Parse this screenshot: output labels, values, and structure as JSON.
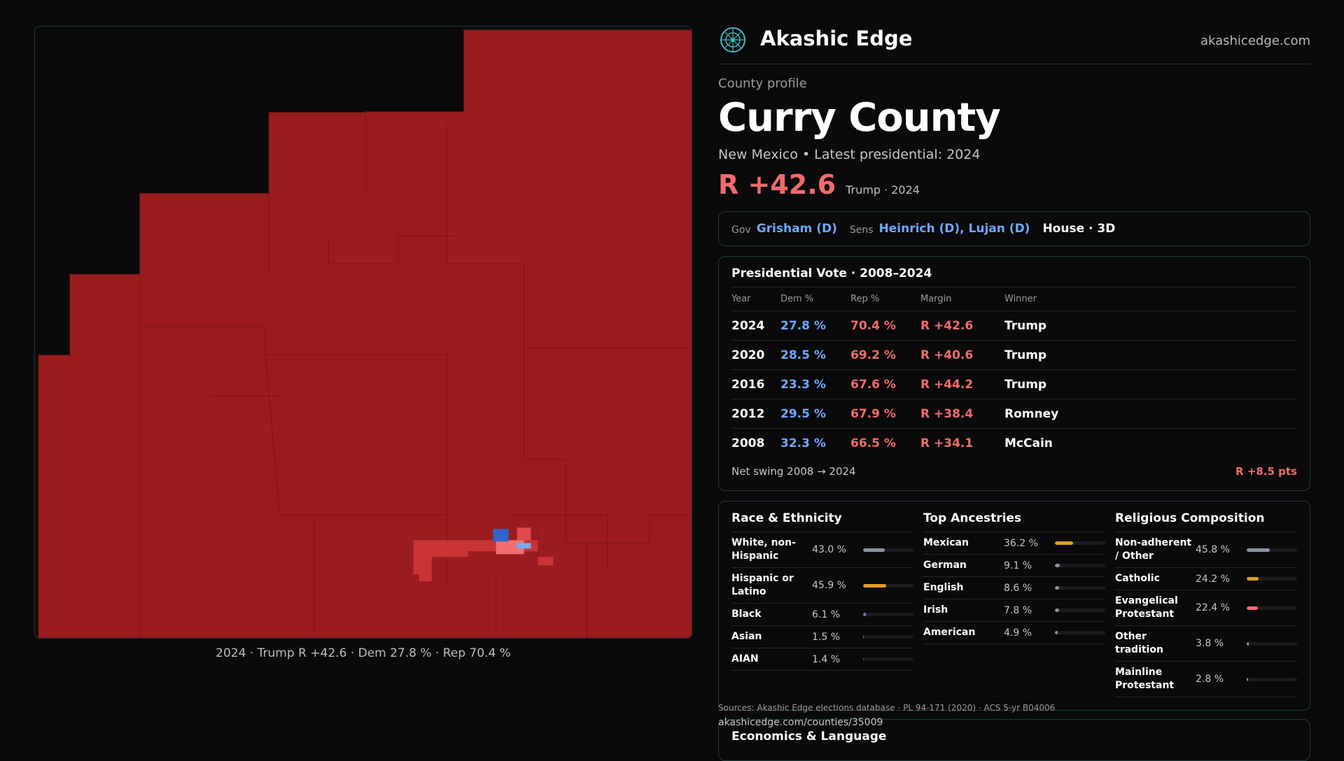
{
  "brand": {
    "name": "Akashic Edge",
    "domain": "akashicedge.com",
    "logo_icon": "compass-globe-icon"
  },
  "profile": {
    "eyebrow": "County profile",
    "county": "Curry County",
    "subline": "New Mexico • Latest presidential: 2024",
    "margin": "R +42.6",
    "margin_note": "Trump · 2024"
  },
  "officials": {
    "gov_label": "Gov",
    "gov": "Grisham (D)",
    "sens_label": "Sens",
    "sens": "Heinrich (D), Lujan (D)",
    "house": "House · 3D"
  },
  "presidential": {
    "title": "Presidential Vote · 2008–2024",
    "headers": [
      "Year",
      "Dem %",
      "Rep %",
      "Margin",
      "Winner"
    ],
    "rows": [
      [
        "2024",
        "27.8 %",
        "70.4 %",
        "R +42.6",
        "Trump"
      ],
      [
        "2020",
        "28.5 %",
        "69.2 %",
        "R +40.6",
        "Trump"
      ],
      [
        "2016",
        "23.3 %",
        "67.6 %",
        "R +44.2",
        "Trump"
      ],
      [
        "2012",
        "29.5 %",
        "67.9 %",
        "R +38.4",
        "Romney"
      ],
      [
        "2008",
        "32.3 %",
        "66.5 %",
        "R +34.1",
        "McCain"
      ]
    ],
    "swing_label": "Net swing 2008 → 2024",
    "swing_value": "R +8.5 pts"
  },
  "demographics": {
    "race": {
      "title": "Race & Ethnicity",
      "items": [
        {
          "label": "White, non-Hispanic",
          "value": "43.0 %",
          "pct": 43.0,
          "color": "#8c93a3"
        },
        {
          "label": "Hispanic or Latino",
          "value": "45.9 %",
          "pct": 45.9,
          "color": "#e0a020"
        },
        {
          "label": "Black",
          "value": "6.1 %",
          "pct": 6.1,
          "color": "#7b6cf0"
        },
        {
          "label": "Asian",
          "value": "1.5 %",
          "pct": 1.5,
          "color": "#8c93a3"
        },
        {
          "label": "AIAN",
          "value": "1.4 %",
          "pct": 1.4,
          "color": "#8a4a2a"
        }
      ]
    },
    "ancestry": {
      "title": "Top Ancestries",
      "items": [
        {
          "label": "Mexican",
          "value": "36.2 %",
          "pct": 36.2,
          "color": "#e0a020"
        },
        {
          "label": "German",
          "value": "9.1 %",
          "pct": 9.1,
          "color": "#8c93a3"
        },
        {
          "label": "English",
          "value": "8.6 %",
          "pct": 8.6,
          "color": "#8c93a3"
        },
        {
          "label": "Irish",
          "value": "7.8 %",
          "pct": 7.8,
          "color": "#8c93a3"
        },
        {
          "label": "American",
          "value": "4.9 %",
          "pct": 4.9,
          "color": "#8c93a3"
        }
      ]
    },
    "religion": {
      "title": "Religious Composition",
      "items": [
        {
          "label": "Non-adherent / Other",
          "value": "45.8 %",
          "pct": 45.8,
          "color": "#8c93a3"
        },
        {
          "label": "Catholic",
          "value": "24.2 %",
          "pct": 24.2,
          "color": "#e0a020"
        },
        {
          "label": "Evangelical Protestant",
          "value": "22.4 %",
          "pct": 22.4,
          "color": "#f26b6b"
        },
        {
          "label": "Other tradition",
          "value": "3.8 %",
          "pct": 3.8,
          "color": "#8c93a3"
        },
        {
          "label": "Mainline Protestant",
          "value": "2.8 %",
          "pct": 2.8,
          "color": "#6fa8ff"
        }
      ]
    }
  },
  "map": {
    "caption": "2024 · Trump R +42.6 · Dem 27.8 % · Rep 70.4 %",
    "fill_rep": "#9b1c1f",
    "fill_rep_light": "#c93434",
    "fill_dem": "#2f66c9"
  },
  "footer": {
    "sources": "Sources: Akashic Edge elections database · PL 94-171 (2020) · ACS 5-yr B04006",
    "url": "akashicedge.com/counties/35009",
    "economics_title": "Economics & Language"
  }
}
